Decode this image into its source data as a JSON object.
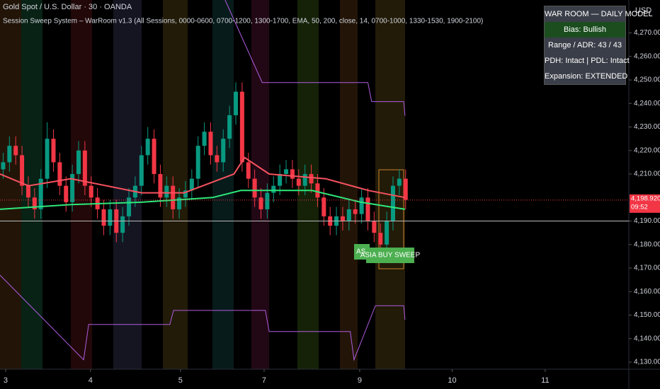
{
  "chart_data": {
    "type": "candlestick",
    "title": "Gold Spot / U.S. Dollar · 30 · OANDA",
    "subtitle": "Session Sweep System – WarRoom v1.3 (All Sessions, 0000-0600, 0700-1200, 1300-1700, EMA, 50, 200, close, 14, 0700-1000, 1330-1530, 1900-2100)",
    "currency": "USD",
    "x": [
      0,
      1,
      2,
      3,
      4,
      5,
      6,
      7,
      8,
      9,
      10,
      11,
      12,
      13,
      14,
      15,
      16,
      17,
      18,
      19,
      20,
      21,
      22,
      23,
      24,
      25,
      26,
      27,
      28,
      29,
      30,
      31,
      32,
      33,
      34,
      35,
      36,
      37,
      38,
      39,
      40,
      41,
      42,
      43,
      44,
      45,
      46,
      47,
      48,
      49,
      50,
      51,
      52,
      53,
      54,
      55,
      56,
      57,
      58,
      59,
      60,
      61,
      62,
      63,
      64
    ],
    "open": [
      4212,
      4215,
      4222,
      4218,
      4205,
      4200,
      4195,
      4208,
      4225,
      4215,
      4205,
      4198,
      4210,
      4220,
      4205,
      4200,
      4195,
      4188,
      4195,
      4185,
      4192,
      4200,
      4205,
      4218,
      4225,
      4210,
      4200,
      4205,
      4195,
      4200,
      4203,
      4208,
      4222,
      4228,
      4218,
      4215,
      4225,
      4235,
      4245,
      4215,
      4208,
      4200,
      4195,
      4202,
      4205,
      4210,
      4212,
      4208,
      4205,
      4210,
      4206,
      4200,
      4192,
      4188,
      4192,
      4190,
      4195,
      4193,
      4200,
      4190,
      4185,
      4180,
      4190,
      4205,
      4208
    ],
    "high": [
      4219,
      4226,
      4226,
      4222,
      4209,
      4204,
      4212,
      4232,
      4229,
      4219,
      4209,
      4214,
      4224,
      4224,
      4209,
      4204,
      4199,
      4199,
      4199,
      4196,
      4204,
      4209,
      4222,
      4230,
      4229,
      4214,
      4209,
      4209,
      4204,
      4207,
      4212,
      4226,
      4232,
      4232,
      4222,
      4229,
      4239,
      4249,
      4249,
      4219,
      4212,
      4204,
      4206,
      4209,
      4214,
      4216,
      4216,
      4212,
      4214,
      4214,
      4210,
      4204,
      4196,
      4196,
      4196,
      4199,
      4199,
      4204,
      4204,
      4194,
      4189,
      4194,
      4209,
      4212,
      4212
    ],
    "low": [
      4208,
      4211,
      4214,
      4201,
      4196,
      4191,
      4191,
      4204,
      4211,
      4201,
      4194,
      4194,
      4206,
      4201,
      4196,
      4191,
      4184,
      4184,
      4181,
      4181,
      4188,
      4196,
      4201,
      4214,
      4206,
      4196,
      4196,
      4191,
      4191,
      4196,
      4199,
      4204,
      4218,
      4214,
      4211,
      4211,
      4221,
      4231,
      4211,
      4204,
      4196,
      4191,
      4191,
      4198,
      4201,
      4206,
      4204,
      4201,
      4201,
      4202,
      4196,
      4188,
      4184,
      4184,
      4186,
      4186,
      4189,
      4189,
      4186,
      4181,
      4176,
      4176,
      4186,
      4201,
      4195
    ],
    "close": [
      4215,
      4222,
      4218,
      4205,
      4200,
      4195,
      4208,
      4225,
      4215,
      4205,
      4198,
      4210,
      4220,
      4205,
      4200,
      4195,
      4188,
      4195,
      4185,
      4192,
      4200,
      4205,
      4218,
      4225,
      4210,
      4200,
      4205,
      4195,
      4200,
      4203,
      4208,
      4222,
      4228,
      4218,
      4215,
      4225,
      4235,
      4245,
      4215,
      4208,
      4200,
      4195,
      4202,
      4205,
      4210,
      4212,
      4208,
      4205,
      4210,
      4206,
      4200,
      4192,
      4188,
      4192,
      4190,
      4195,
      4193,
      4200,
      4190,
      4185,
      4180,
      4190,
      4205,
      4208,
      4199
    ],
    "up_color": "#089981",
    "down_color": "#f23645",
    "lines": [
      {
        "color": "#f7525f",
        "x": [
          -0.5,
          4,
          10.8,
          22,
          28.8,
          36.7,
          38.4,
          42.3,
          51.3,
          58.1,
          63.9
        ],
        "values": [
          4210,
          4205,
          4208,
          4202,
          4202,
          4210,
          4217,
          4210,
          4208,
          4203,
          4200
        ]
      },
      {
        "color": "#2ee87a",
        "x": [
          -0.5,
          10.8,
          22,
          33.3,
          37.8,
          49.1,
          56.9,
          63.9
        ],
        "values": [
          4195,
          4197,
          4198,
          4200,
          4203,
          4203,
          4198,
          4195
        ]
      },
      {
        "color": "#b05ce0",
        "x": [
          35.3,
          41.2,
          58,
          58.6,
          63.7,
          63.9
        ],
        "values": [
          4284,
          4248.9,
          4248.9,
          4240.8,
          4240.8,
          4234.8
        ]
      },
      {
        "color": "#b05ce0",
        "x": [
          -0.5,
          12.8,
          13.6,
          26.5,
          27.1,
          41.7,
          42.3,
          55.2,
          55.8,
          59.2,
          63.7,
          63.9
        ],
        "values": [
          4167,
          4131,
          4146,
          4146,
          4152,
          4152,
          4143,
          4143,
          4131,
          4154,
          4154,
          4148
        ]
      }
    ],
    "level": 4190,
    "price_line": {
      "value": 4198.92,
      "label": "4,198.920",
      "time": "09:52"
    },
    "annotations": [
      "ASIA BUY SWEEP",
      "ASI"
    ],
    "xlim": [
      -0.5,
      99.5
    ],
    "ylim": [
      4127,
      4284
    ],
    "xticks": [
      {
        "value": 0.4,
        "label": "3"
      },
      {
        "value": 13.9,
        "label": "4"
      },
      {
        "value": 28.2,
        "label": "5"
      },
      {
        "value": 41.5,
        "label": "7"
      },
      {
        "value": 56.7,
        "label": "9"
      },
      {
        "value": 71.4,
        "label": "10"
      },
      {
        "value": 86.2,
        "label": "11"
      }
    ],
    "yticks": [
      {
        "value": 4130,
        "label": "4,130.000"
      },
      {
        "value": 4140,
        "label": "4,140.000"
      },
      {
        "value": 4150,
        "label": "4,150.000"
      },
      {
        "value": 4160,
        "label": "4,160.000"
      },
      {
        "value": 4170,
        "label": "4,170.000"
      },
      {
        "value": 4180,
        "label": "4,180.000"
      },
      {
        "value": 4190,
        "label": "4,190.000"
      },
      {
        "value": 4210,
        "label": "4,210.000"
      },
      {
        "value": 4220,
        "label": "4,220.000"
      },
      {
        "value": 4230,
        "label": "4,230.000"
      },
      {
        "value": 4240,
        "label": "4,240.000"
      },
      {
        "value": 4250,
        "label": "4,250.000"
      },
      {
        "value": 4260,
        "label": "4,260.000"
      },
      {
        "value": 4270,
        "label": "4,270.000"
      }
    ]
  },
  "panel": {
    "title": "WAR ROOM — DAILY MODEL",
    "rows": [
      "Bias: Bullish",
      "Range / ADR: 43 / 43",
      "PDH: Intact | PDL: Intact",
      "Expansion: EXTENDED"
    ]
  }
}
